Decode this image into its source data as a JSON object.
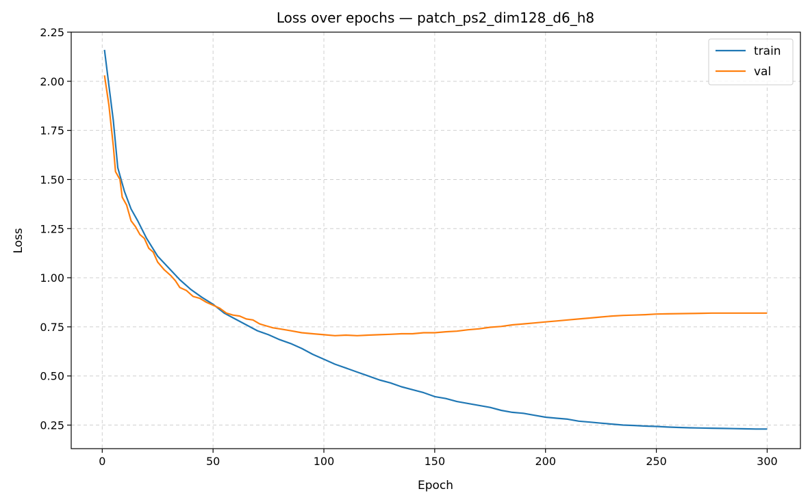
{
  "chart_data": {
    "type": "line",
    "title": "Loss over epochs — patch_ps2_dim128_d6_h8",
    "xlabel": "Epoch",
    "ylabel": "Loss",
    "xlim": [
      -14,
      315
    ],
    "ylim": [
      0.13,
      2.25
    ],
    "xticks": [
      0,
      50,
      100,
      150,
      200,
      250,
      300
    ],
    "xtick_labels": [
      "0",
      "50",
      "100",
      "150",
      "200",
      "250",
      "300"
    ],
    "yticks": [
      0.25,
      0.5,
      0.75,
      1.0,
      1.25,
      1.5,
      1.75,
      2.0,
      2.25
    ],
    "ytick_labels": [
      "0.25",
      "0.50",
      "0.75",
      "1.00",
      "1.25",
      "1.50",
      "1.75",
      "2.00",
      "2.25"
    ],
    "grid": true,
    "legend_position": "top-right",
    "series": [
      {
        "name": "train",
        "color": "#1f77b4",
        "points": [
          [
            1,
            2.16
          ],
          [
            3,
            1.98
          ],
          [
            5,
            1.8
          ],
          [
            7,
            1.56
          ],
          [
            10,
            1.44
          ],
          [
            13,
            1.35
          ],
          [
            16,
            1.29
          ],
          [
            20,
            1.2
          ],
          [
            25,
            1.11
          ],
          [
            30,
            1.05
          ],
          [
            35,
            0.99
          ],
          [
            40,
            0.94
          ],
          [
            45,
            0.9
          ],
          [
            50,
            0.865
          ],
          [
            55,
            0.82
          ],
          [
            60,
            0.79
          ],
          [
            65,
            0.76
          ],
          [
            70,
            0.73
          ],
          [
            75,
            0.71
          ],
          [
            80,
            0.685
          ],
          [
            85,
            0.665
          ],
          [
            90,
            0.64
          ],
          [
            95,
            0.61
          ],
          [
            100,
            0.585
          ],
          [
            105,
            0.56
          ],
          [
            110,
            0.54
          ],
          [
            115,
            0.52
          ],
          [
            120,
            0.5
          ],
          [
            125,
            0.48
          ],
          [
            130,
            0.465
          ],
          [
            135,
            0.445
          ],
          [
            140,
            0.43
          ],
          [
            145,
            0.415
          ],
          [
            150,
            0.395
          ],
          [
            155,
            0.385
          ],
          [
            160,
            0.37
          ],
          [
            165,
            0.36
          ],
          [
            170,
            0.35
          ],
          [
            175,
            0.34
          ],
          [
            180,
            0.325
          ],
          [
            185,
            0.315
          ],
          [
            190,
            0.31
          ],
          [
            195,
            0.3
          ],
          [
            200,
            0.29
          ],
          [
            205,
            0.285
          ],
          [
            210,
            0.28
          ],
          [
            215,
            0.27
          ],
          [
            220,
            0.265
          ],
          [
            225,
            0.26
          ],
          [
            230,
            0.255
          ],
          [
            235,
            0.25
          ],
          [
            240,
            0.248
          ],
          [
            245,
            0.245
          ],
          [
            250,
            0.243
          ],
          [
            255,
            0.24
          ],
          [
            260,
            0.238
          ],
          [
            265,
            0.236
          ],
          [
            270,
            0.235
          ],
          [
            275,
            0.234
          ],
          [
            280,
            0.233
          ],
          [
            285,
            0.232
          ],
          [
            290,
            0.231
          ],
          [
            295,
            0.23
          ],
          [
            300,
            0.23
          ]
        ]
      },
      {
        "name": "val",
        "color": "#ff7f0e",
        "points": [
          [
            1,
            2.03
          ],
          [
            3,
            1.88
          ],
          [
            5,
            1.67
          ],
          [
            6,
            1.54
          ],
          [
            8,
            1.5
          ],
          [
            9,
            1.41
          ],
          [
            11,
            1.37
          ],
          [
            13,
            1.29
          ],
          [
            15,
            1.26
          ],
          [
            17,
            1.22
          ],
          [
            19,
            1.2
          ],
          [
            21,
            1.15
          ],
          [
            23,
            1.13
          ],
          [
            25,
            1.08
          ],
          [
            28,
            1.04
          ],
          [
            31,
            1.01
          ],
          [
            33,
            0.985
          ],
          [
            35,
            0.95
          ],
          [
            38,
            0.935
          ],
          [
            41,
            0.905
          ],
          [
            44,
            0.895
          ],
          [
            47,
            0.875
          ],
          [
            50,
            0.86
          ],
          [
            53,
            0.845
          ],
          [
            56,
            0.82
          ],
          [
            59,
            0.81
          ],
          [
            62,
            0.805
          ],
          [
            65,
            0.79
          ],
          [
            68,
            0.785
          ],
          [
            71,
            0.765
          ],
          [
            74,
            0.755
          ],
          [
            77,
            0.745
          ],
          [
            80,
            0.74
          ],
          [
            85,
            0.73
          ],
          [
            90,
            0.72
          ],
          [
            95,
            0.715
          ],
          [
            100,
            0.71
          ],
          [
            105,
            0.705
          ],
          [
            110,
            0.708
          ],
          [
            115,
            0.705
          ],
          [
            120,
            0.708
          ],
          [
            125,
            0.71
          ],
          [
            130,
            0.712
          ],
          [
            135,
            0.715
          ],
          [
            140,
            0.715
          ],
          [
            145,
            0.72
          ],
          [
            150,
            0.72
          ],
          [
            155,
            0.725
          ],
          [
            160,
            0.728
          ],
          [
            165,
            0.735
          ],
          [
            170,
            0.74
          ],
          [
            175,
            0.748
          ],
          [
            180,
            0.752
          ],
          [
            185,
            0.76
          ],
          [
            190,
            0.765
          ],
          [
            195,
            0.77
          ],
          [
            200,
            0.775
          ],
          [
            205,
            0.78
          ],
          [
            210,
            0.785
          ],
          [
            215,
            0.79
          ],
          [
            220,
            0.795
          ],
          [
            225,
            0.8
          ],
          [
            230,
            0.805
          ],
          [
            235,
            0.808
          ],
          [
            240,
            0.81
          ],
          [
            245,
            0.812
          ],
          [
            250,
            0.815
          ],
          [
            255,
            0.816
          ],
          [
            260,
            0.817
          ],
          [
            265,
            0.818
          ],
          [
            270,
            0.819
          ],
          [
            275,
            0.82
          ],
          [
            280,
            0.82
          ],
          [
            285,
            0.82
          ],
          [
            290,
            0.82
          ],
          [
            295,
            0.82
          ],
          [
            300,
            0.82
          ]
        ]
      }
    ]
  }
}
